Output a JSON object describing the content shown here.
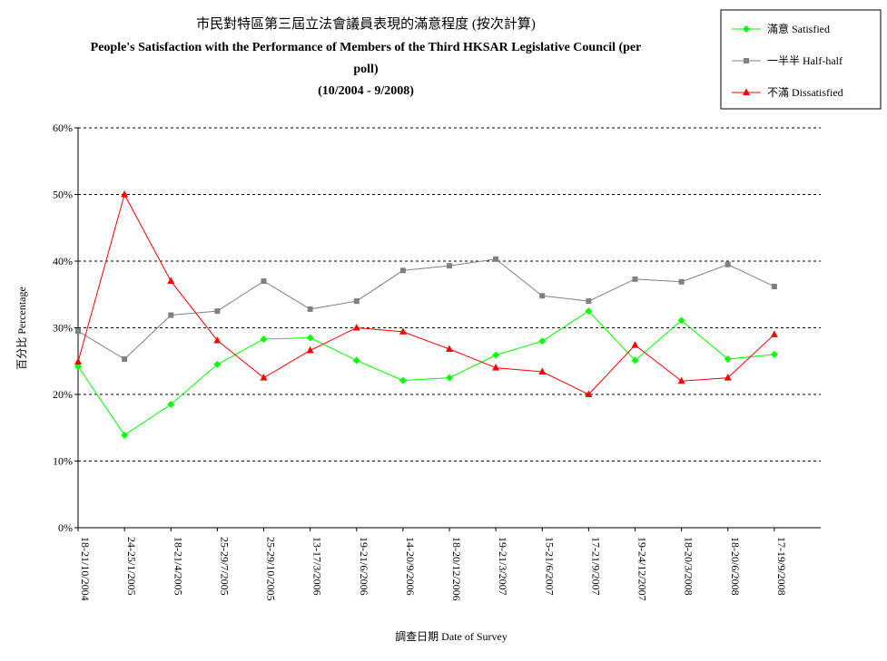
{
  "chart_data": {
    "type": "line",
    "title_cn": "市民對特區第三屆立法會議員表現的滿意程度 (按次計算)",
    "title_en_line1": "People's Satisfaction with the Performance of Members of the Third HKSAR Legislative Council (per",
    "title_en_line2": "poll)",
    "title_range": "(10/2004 - 9/2008)",
    "xlabel": "調查日期 Date of Survey",
    "ylabel": "百分比 Percentage",
    "ylim": [
      0,
      60
    ],
    "yticks": [
      "0%",
      "10%",
      "20%",
      "30%",
      "40%",
      "50%",
      "60%"
    ],
    "grid": true,
    "legend_position": "top-right",
    "categories": [
      "18-21/10/2004",
      "24-25/1/2005",
      "18-21/4/2005",
      "25-29/7/2005",
      "25-29/10/2005",
      "13-17/3/2006",
      "19-21/6/2006",
      "14-20/9/2006",
      "18-20/12/2006",
      "19-21/3/2007",
      "15-21/6/2007",
      "17-21/9/2007",
      "19-24/12/2007",
      "18-20/3/2008",
      "18-20/6/2008",
      "17-19/9/2008"
    ],
    "series": [
      {
        "name": "滿意 Satisfied",
        "color": "#00ff00",
        "marker": "diamond",
        "values": [
          24.2,
          13.9,
          18.5,
          24.5,
          28.3,
          28.5,
          25.1,
          22.1,
          22.5,
          25.9,
          28.0,
          32.5,
          25.1,
          31.1,
          25.3,
          26.0
        ]
      },
      {
        "name": "一半半 Half-half",
        "color": "#808080",
        "marker": "square",
        "values": [
          29.5,
          25.3,
          31.9,
          32.5,
          37.0,
          32.8,
          34.0,
          38.6,
          39.3,
          40.3,
          34.8,
          34.0,
          37.3,
          36.9,
          39.5,
          36.2
        ]
      },
      {
        "name": "不滿 Dissatisfied",
        "color": "#ff0000",
        "marker": "triangle",
        "values": [
          24.9,
          50.0,
          37.0,
          28.1,
          22.5,
          26.6,
          30.0,
          29.4,
          26.8,
          24.0,
          23.4,
          20.0,
          27.4,
          22.0,
          22.5,
          29.0
        ]
      }
    ]
  }
}
